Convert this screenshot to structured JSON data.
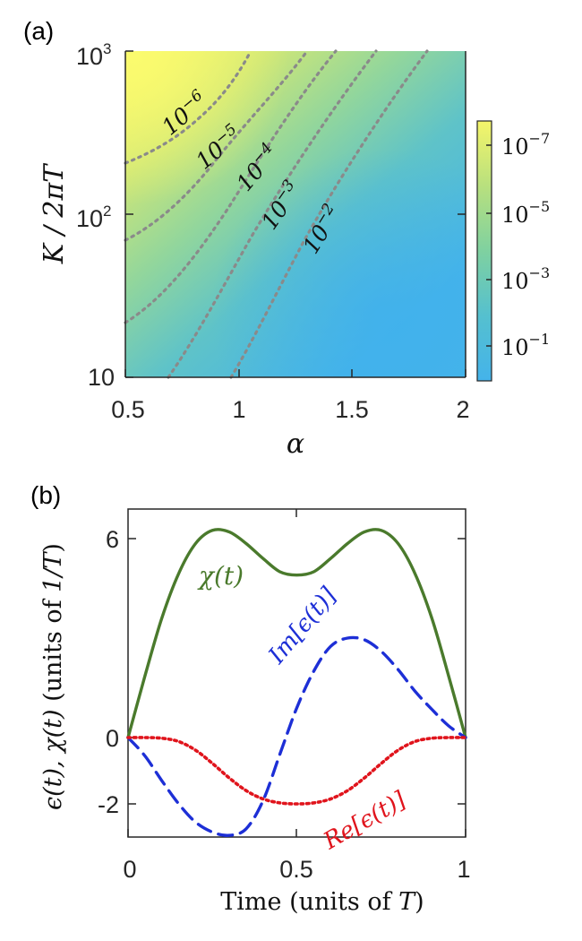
{
  "panel_a": {
    "tag": "(a)",
    "ylabel": "K / 2πT",
    "xlabel": "α",
    "xticks": [
      "0.5",
      "1",
      "1.5",
      "2"
    ],
    "yticks": [
      {
        "base": "10",
        "exp": "3"
      },
      {
        "base": "10",
        "exp": "2"
      },
      {
        "base": "10",
        "exp": ""
      }
    ],
    "colorbar": {
      "ticks": [
        {
          "base": "10",
          "exp": "−7"
        },
        {
          "base": "10",
          "exp": "−5"
        },
        {
          "base": "10",
          "exp": "−3"
        },
        {
          "base": "10",
          "exp": "−1"
        }
      ],
      "colors": [
        "#f5f56a",
        "#b8e07e",
        "#7fd1a0",
        "#55c0cf",
        "#44b3ea"
      ]
    },
    "contour_labels": [
      {
        "base": "10",
        "exp": "−6"
      },
      {
        "base": "10",
        "exp": "−5"
      },
      {
        "base": "10",
        "exp": "−4"
      },
      {
        "base": "10",
        "exp": "−3"
      },
      {
        "base": "10",
        "exp": "−2"
      }
    ]
  },
  "panel_b": {
    "tag": "(b)",
    "xlabel_text": "Time (units of ",
    "xlabel_sym": "T",
    "xlabel_close": ")",
    "ylabel_sym": "ϵ(t), χ(t)",
    "ylabel_text": " (units of ",
    "ylabel_sym2": "1/T",
    "ylabel_close": ")",
    "xticks": [
      "0",
      "0.5",
      "1"
    ],
    "yticks": [
      "6",
      "0",
      "-2"
    ],
    "labels": {
      "chi": "χ(t)",
      "im": "Im[ϵ(t)]",
      "re": "Re[ϵ(t)]"
    }
  },
  "chart_data": [
    {
      "type": "heatmap",
      "title": "(a)",
      "xlabel": "α",
      "ylabel": "K/2πT",
      "xlim": [
        0.5,
        2
      ],
      "ylim": [
        10,
        1000
      ],
      "yscale": "log",
      "colorbar_scale": "log",
      "colorbar_ticks": [
        "10^-7",
        "10^-5",
        "10^-3",
        "10^-1"
      ],
      "contour_levels": [
        "10^-6",
        "10^-5",
        "10^-4",
        "10^-3",
        "10^-2"
      ]
    },
    {
      "type": "line",
      "title": "(b)",
      "xlabel": "Time (units of T)",
      "ylabel": "ϵ(t), χ(t) (units of 1/T)",
      "xlim": [
        0,
        1
      ],
      "ylim": [
        -3.1,
        7.2
      ],
      "x": [
        0,
        0.05,
        0.1,
        0.15,
        0.2,
        0.25,
        0.3,
        0.35,
        0.4,
        0.45,
        0.5,
        0.55,
        0.6,
        0.65,
        0.7,
        0.75,
        0.8,
        0.85,
        0.9,
        0.95,
        1.0
      ],
      "series": [
        {
          "name": "χ(t)",
          "color": "#4a7a2c",
          "style": "solid",
          "values": [
            0,
            1.85,
            3.6,
            4.95,
            5.85,
            6.25,
            6.2,
            5.85,
            5.4,
            5.0,
            4.9,
            5.0,
            5.4,
            5.85,
            6.2,
            6.25,
            5.85,
            4.95,
            3.6,
            1.85,
            0
          ]
        },
        {
          "name": "Im[ϵ(t)]",
          "color": "#1d2fd6",
          "style": "dashed",
          "values": [
            0,
            -0.55,
            -1.3,
            -2.0,
            -2.55,
            -2.85,
            -2.95,
            -2.75,
            -1.9,
            -0.5,
            0.9,
            2.0,
            2.75,
            3.0,
            2.95,
            2.6,
            2.05,
            1.4,
            0.85,
            0.35,
            0
          ]
        },
        {
          "name": "Re[ϵ(t)]",
          "color": "#e0141c",
          "style": "dotted",
          "values": [
            0,
            0,
            -0.02,
            -0.12,
            -0.38,
            -0.78,
            -1.22,
            -1.6,
            -1.85,
            -1.97,
            -2.0,
            -1.97,
            -1.85,
            -1.6,
            -1.22,
            -0.78,
            -0.38,
            -0.12,
            -0.02,
            0,
            0
          ]
        }
      ]
    }
  ]
}
